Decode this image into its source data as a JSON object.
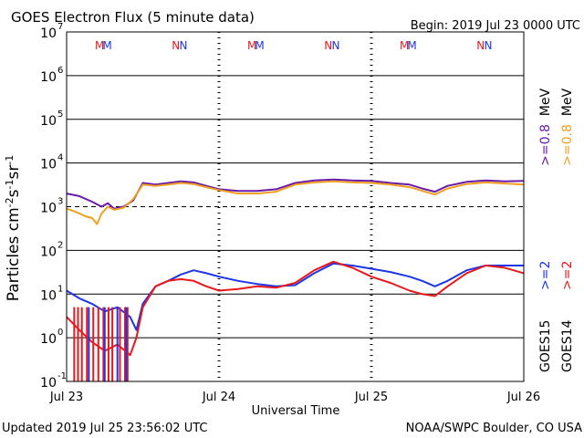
{
  "header": {
    "title": "GOES Electron Flux (5 minute data)",
    "begin": "Begin: 2019 Jul 23 0000 UTC"
  },
  "footer": {
    "updated": "Updated 2019 Jul 25 23:56:02 UTC",
    "credit": "NOAA/SWPC Boulder, CO USA"
  },
  "chart_data": {
    "type": "line",
    "title": "GOES Electron Flux (5 minute data)",
    "xlabel": "Universal Time",
    "ylabel": "Particles cm^-2 s^-1 sr^-1",
    "y_scale": "log",
    "ylim": [
      0.1,
      10000000
    ],
    "xlim": [
      "2019-07-23T00:00",
      "2019-07-26T00:00"
    ],
    "x_ticks": [
      "Jul 23",
      "Jul 24",
      "Jul 25",
      "Jul 26"
    ],
    "y_ticks": [
      {
        "value": 0.1,
        "base": "10",
        "exp": "-1"
      },
      {
        "value": 1,
        "base": "10",
        "exp": "0"
      },
      {
        "value": 10,
        "base": "10",
        "exp": "1"
      },
      {
        "value": 100,
        "base": "10",
        "exp": "2"
      },
      {
        "value": 1000,
        "base": "10",
        "exp": "3"
      },
      {
        "value": 10000,
        "base": "10",
        "exp": "4"
      },
      {
        "value": 100000,
        "base": "10",
        "exp": "5"
      },
      {
        "value": 1000000,
        "base": "10",
        "exp": "6"
      },
      {
        "value": 10000000,
        "base": "10",
        "exp": "7"
      }
    ],
    "grid": true,
    "alert_threshold": 1000,
    "markers": [
      {
        "label": "M",
        "x": "2019-07-23T05:12",
        "color": "#e8181c"
      },
      {
        "label": "M",
        "x": "2019-07-23T06:24",
        "color": "#1c36e8"
      },
      {
        "label": "N",
        "x": "2019-07-23T17:12",
        "color": "#e8181c"
      },
      {
        "label": "N",
        "x": "2019-07-23T18:24",
        "color": "#1c36e8"
      },
      {
        "label": "M",
        "x": "2019-07-24T05:12",
        "color": "#e8181c"
      },
      {
        "label": "M",
        "x": "2019-07-24T06:24",
        "color": "#1c36e8"
      },
      {
        "label": "N",
        "x": "2019-07-24T17:12",
        "color": "#e8181c"
      },
      {
        "label": "N",
        "x": "2019-07-24T18:24",
        "color": "#1c36e8"
      },
      {
        "label": "M",
        "x": "2019-07-25T05:12",
        "color": "#e8181c"
      },
      {
        "label": "M",
        "x": "2019-07-25T06:24",
        "color": "#1c36e8"
      },
      {
        "label": "N",
        "x": "2019-07-25T17:12",
        "color": "#e8181c"
      },
      {
        "label": "N",
        "x": "2019-07-25T18:24",
        "color": "#1c36e8"
      }
    ],
    "legend": {
      "placement": "right",
      "groups": [
        {
          "satellite": "GOES15",
          "items": [
            {
              "text": ">=2",
              "color": "#1c36e8"
            },
            {
              "text": ">=0.8",
              "color": "#6a1aa8"
            }
          ]
        },
        {
          "satellite": "GOES14",
          "items": [
            {
              "text": ">=2",
              "color": "#e8181c"
            },
            {
              "text": ">=0.8",
              "color": "#f0a020"
            }
          ]
        }
      ],
      "unit": "MeV"
    },
    "series": [
      {
        "satellite": "GOES15",
        "energy": ">=0.8 MeV",
        "color": "#6a1aa8",
        "x": [
          "2019-07-23T00:00",
          "2019-07-23T02:00",
          "2019-07-23T04:00",
          "2019-07-23T05:30",
          "2019-07-23T06:30",
          "2019-07-23T07:30",
          "2019-07-23T09:00",
          "2019-07-23T10:30",
          "2019-07-23T12:00",
          "2019-07-23T14:00",
          "2019-07-23T16:00",
          "2019-07-23T18:00",
          "2019-07-23T20:00",
          "2019-07-23T22:00",
          "2019-07-24T00:00",
          "2019-07-24T03:00",
          "2019-07-24T06:00",
          "2019-07-24T09:00",
          "2019-07-24T12:00",
          "2019-07-24T15:00",
          "2019-07-24T18:00",
          "2019-07-24T21:00",
          "2019-07-25T00:00",
          "2019-07-25T03:00",
          "2019-07-25T06:00",
          "2019-07-25T08:00",
          "2019-07-25T10:00",
          "2019-07-25T12:00",
          "2019-07-25T15:00",
          "2019-07-25T18:00",
          "2019-07-25T21:00",
          "2019-07-26T00:00"
        ],
        "y": [
          2000,
          1750,
          1300,
          1000,
          1200,
          900,
          1000,
          1400,
          3500,
          3200,
          3500,
          3800,
          3600,
          3000,
          2500,
          2300,
          2300,
          2500,
          3500,
          4000,
          4200,
          4000,
          3900,
          3500,
          3200,
          2600,
          2200,
          3000,
          3700,
          4000,
          3800,
          3900
        ]
      },
      {
        "satellite": "GOES14",
        "energy": ">=0.8 MeV",
        "color": "#f0a020",
        "x": [
          "2019-07-23T00:00",
          "2019-07-23T01:00",
          "2019-07-23T02:00",
          "2019-07-23T03:00",
          "2019-07-23T04:00",
          "2019-07-23T04:48",
          "2019-07-23T05:30",
          "2019-07-23T06:30",
          "2019-07-23T07:30",
          "2019-07-23T09:00",
          "2019-07-23T10:30",
          "2019-07-23T12:00",
          "2019-07-23T14:00",
          "2019-07-23T16:00",
          "2019-07-23T18:00",
          "2019-07-23T20:00",
          "2019-07-23T22:00",
          "2019-07-24T00:00",
          "2019-07-24T03:00",
          "2019-07-24T06:00",
          "2019-07-24T09:00",
          "2019-07-24T12:00",
          "2019-07-24T15:00",
          "2019-07-24T18:00",
          "2019-07-24T21:00",
          "2019-07-25T00:00",
          "2019-07-25T03:00",
          "2019-07-25T06:00",
          "2019-07-25T08:00",
          "2019-07-25T10:00",
          "2019-07-25T12:00",
          "2019-07-25T15:00",
          "2019-07-25T18:00",
          "2019-07-25T21:00",
          "2019-07-26T00:00"
        ],
        "y": [
          900,
          800,
          700,
          600,
          550,
          400,
          700,
          1000,
          850,
          950,
          1500,
          3200,
          3000,
          3200,
          3500,
          3300,
          2800,
          2400,
          2000,
          2000,
          2200,
          3200,
          3600,
          3800,
          3600,
          3500,
          3200,
          2800,
          2300,
          1900,
          2600,
          3300,
          3600,
          3400,
          3200
        ]
      },
      {
        "satellite": "GOES15",
        "energy": ">=2 MeV",
        "color": "#1c36e8",
        "x": [
          "2019-07-23T00:00",
          "2019-07-23T02:00",
          "2019-07-23T04:00",
          "2019-07-23T06:00",
          "2019-07-23T08:00",
          "2019-07-23T10:00",
          "2019-07-23T11:00",
          "2019-07-23T12:00",
          "2019-07-23T14:00",
          "2019-07-23T16:00",
          "2019-07-23T18:00",
          "2019-07-23T20:00",
          "2019-07-23T22:00",
          "2019-07-24T00:00",
          "2019-07-24T03:00",
          "2019-07-24T06:00",
          "2019-07-24T09:00",
          "2019-07-24T12:00",
          "2019-07-24T15:00",
          "2019-07-24T18:00",
          "2019-07-24T21:00",
          "2019-07-25T00:00",
          "2019-07-25T03:00",
          "2019-07-25T06:00",
          "2019-07-25T08:00",
          "2019-07-25T10:00",
          "2019-07-25T12:00",
          "2019-07-25T15:00",
          "2019-07-25T18:00",
          "2019-07-25T21:00",
          "2019-07-26T00:00"
        ],
        "y": [
          12,
          8,
          6,
          4,
          5,
          3,
          1.5,
          6,
          15,
          20,
          28,
          35,
          30,
          25,
          20,
          17,
          15,
          16,
          30,
          50,
          45,
          38,
          32,
          25,
          20,
          15,
          20,
          35,
          45,
          45,
          45
        ]
      },
      {
        "satellite": "GOES14",
        "energy": ">=2 MeV",
        "color": "#e8181c",
        "x": [
          "2019-07-23T00:00",
          "2019-07-23T02:00",
          "2019-07-23T04:00",
          "2019-07-23T06:00",
          "2019-07-23T08:00",
          "2019-07-23T10:00",
          "2019-07-23T11:00",
          "2019-07-23T12:00",
          "2019-07-23T14:00",
          "2019-07-23T16:00",
          "2019-07-23T18:00",
          "2019-07-23T20:00",
          "2019-07-23T22:00",
          "2019-07-24T00:00",
          "2019-07-24T03:00",
          "2019-07-24T06:00",
          "2019-07-24T09:00",
          "2019-07-24T12:00",
          "2019-07-24T15:00",
          "2019-07-24T18:00",
          "2019-07-24T21:00",
          "2019-07-25T00:00",
          "2019-07-25T03:00",
          "2019-07-25T06:00",
          "2019-07-25T08:00",
          "2019-07-25T10:00",
          "2019-07-25T12:00",
          "2019-07-25T15:00",
          "2019-07-25T18:00",
          "2019-07-25T21:00",
          "2019-07-26T00:00"
        ],
        "y": [
          3,
          1.5,
          0.8,
          0.5,
          0.7,
          0.4,
          1,
          5,
          15,
          20,
          22,
          20,
          15,
          12,
          13,
          15,
          14,
          18,
          35,
          55,
          40,
          25,
          18,
          12,
          10,
          9,
          15,
          30,
          45,
          40,
          30
        ]
      }
    ],
    "deep_dips": {
      "GOES14": [
        "2019-07-23T01:12",
        "2019-07-23T01:48",
        "2019-07-23T02:24",
        "2019-07-23T03:12",
        "2019-07-23T04:12",
        "2019-07-23T05:00",
        "2019-07-23T05:48",
        "2019-07-23T06:36",
        "2019-07-23T07:12",
        "2019-07-23T08:24",
        "2019-07-23T09:12",
        "2019-07-23T09:36"
      ],
      "GOES15": [
        "2019-07-23T03:30",
        "2019-07-23T06:00",
        "2019-07-23T08:00",
        "2019-07-23T09:24"
      ]
    }
  }
}
